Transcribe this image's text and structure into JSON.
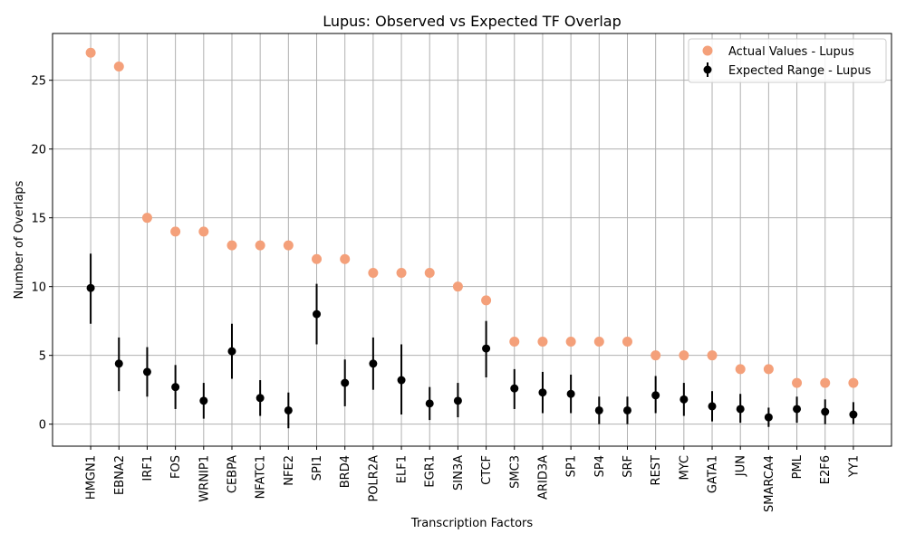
{
  "chart_data": {
    "type": "scatter",
    "title": "Lupus: Observed vs Expected TF Overlap",
    "xlabel": "Transcription Factors",
    "ylabel": "Number of Overlaps",
    "categories": [
      "HMGN1",
      "EBNA2",
      "IRF1",
      "FOS",
      "WRNIP1",
      "CEBPA",
      "NFATC1",
      "NFE2",
      "SPI1",
      "BRD4",
      "POLR2A",
      "ELF1",
      "EGR1",
      "SIN3A",
      "CTCF",
      "SMC3",
      "ARID3A",
      "SP1",
      "SP4",
      "SRF",
      "REST",
      "MYC",
      "GATA1",
      "JUN",
      "SMARCA4",
      "PML",
      "E2F6",
      "YY1"
    ],
    "ylim": [
      -1.6,
      28.4
    ],
    "yticks": [
      0,
      5,
      10,
      15,
      20,
      25
    ],
    "grid": true,
    "legend_position": "top-right",
    "series": [
      {
        "name": "Actual Values - Lupus",
        "color": "#f4a07a",
        "values": [
          27,
          26,
          15,
          14,
          14,
          13,
          13,
          13,
          12,
          12,
          11,
          11,
          11,
          10,
          9,
          6,
          6,
          6,
          6,
          6,
          5,
          5,
          5,
          4,
          4,
          3,
          3,
          3
        ]
      },
      {
        "name": "Expected Range - Lupus",
        "color": "#000000",
        "values": [
          9.9,
          4.4,
          3.8,
          2.7,
          1.7,
          5.3,
          1.9,
          1.0,
          8.0,
          3.0,
          4.4,
          3.2,
          1.5,
          1.7,
          5.5,
          2.6,
          2.3,
          2.2,
          1.0,
          1.0,
          2.1,
          1.8,
          1.3,
          1.1,
          0.5,
          1.1,
          0.9,
          0.7
        ],
        "error_low": [
          7.3,
          2.4,
          2.0,
          1.1,
          0.4,
          3.3,
          0.6,
          -0.3,
          5.8,
          1.3,
          2.5,
          0.7,
          0.3,
          0.5,
          3.4,
          1.1,
          0.8,
          0.8,
          0.0,
          0.0,
          0.8,
          0.6,
          0.2,
          0.1,
          -0.2,
          0.1,
          0.0,
          0.0
        ],
        "error_high": [
          12.4,
          6.3,
          5.6,
          4.3,
          3.0,
          7.3,
          3.2,
          2.3,
          10.2,
          4.7,
          6.3,
          5.8,
          2.7,
          3.0,
          7.5,
          4.0,
          3.8,
          3.6,
          2.0,
          2.0,
          3.5,
          3.0,
          2.4,
          2.2,
          1.2,
          2.0,
          1.8,
          1.6
        ]
      }
    ]
  }
}
